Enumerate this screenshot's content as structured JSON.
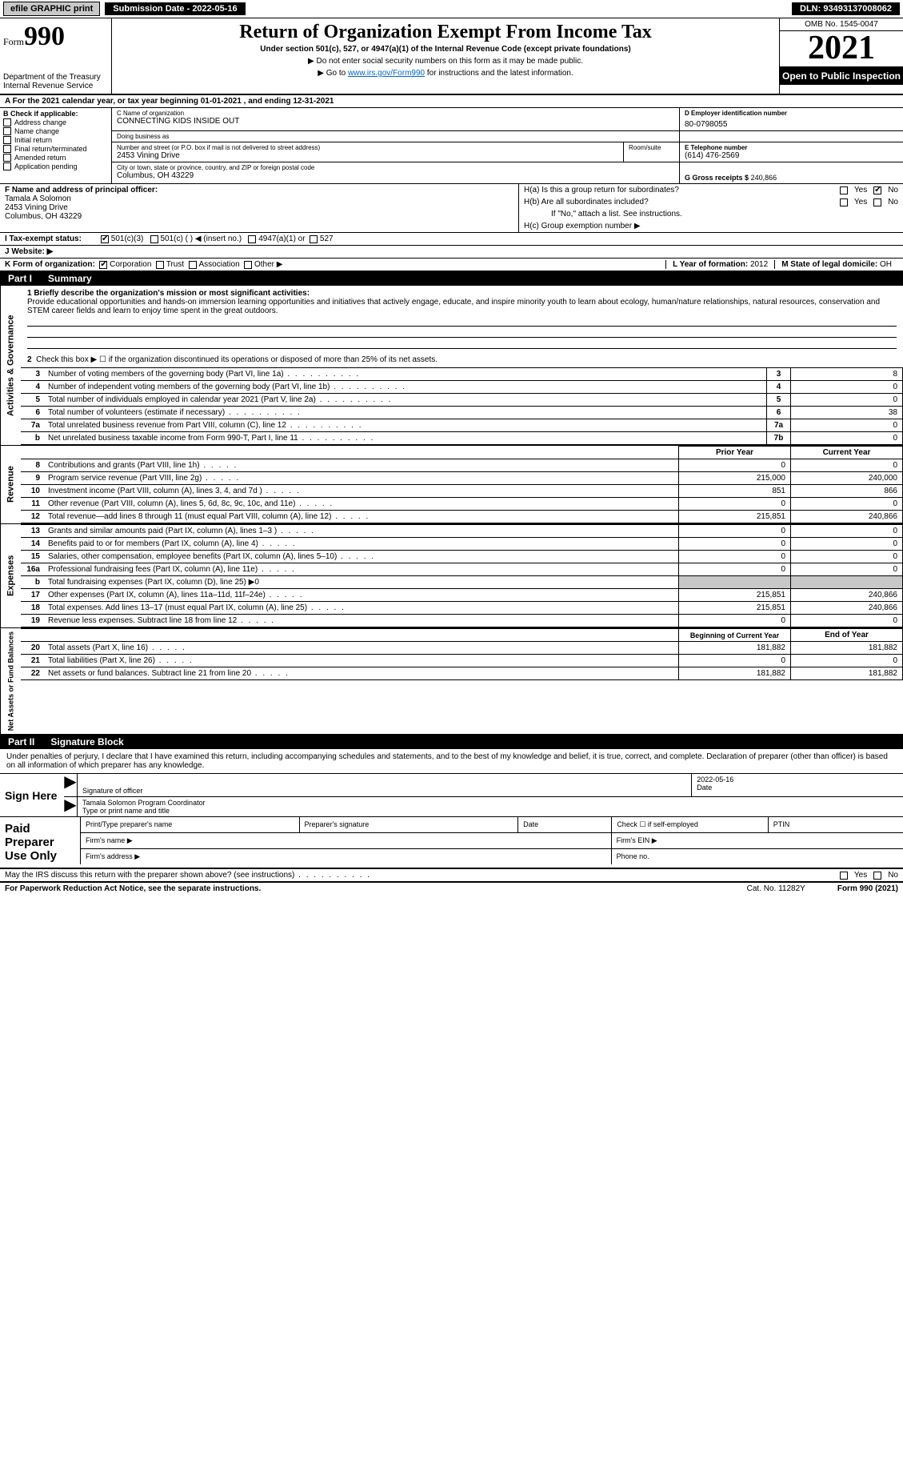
{
  "topbar": {
    "efile": "efile GRAPHIC print",
    "submission": "Submission Date - 2022-05-16",
    "dln": "DLN: 93493137008062"
  },
  "header": {
    "form_prefix": "Form",
    "form_number": "990",
    "dept": "Department of the Treasury",
    "irs": "Internal Revenue Service",
    "title": "Return of Organization Exempt From Income Tax",
    "subtitle": "Under section 501(c), 527, or 4947(a)(1) of the Internal Revenue Code (except private foundations)",
    "ssn_note": "▶ Do not enter social security numbers on this form as it may be made public.",
    "goto_pre": "▶ Go to ",
    "goto_link": "www.irs.gov/Form990",
    "goto_post": " for instructions and the latest information.",
    "omb": "OMB No. 1545-0047",
    "year": "2021",
    "inspection": "Open to Public Inspection"
  },
  "rowA": {
    "text_pre": "A For the 2021 calendar year, or tax year beginning ",
    "begin": "01-01-2021",
    "mid": " , and ending ",
    "end": "12-31-2021"
  },
  "sectionB": {
    "label": "B Check if applicable:",
    "items": [
      "Address change",
      "Name change",
      "Initial return",
      "Final return/terminated",
      "Amended return",
      "Application pending"
    ]
  },
  "sectionC": {
    "name_lbl": "C Name of organization",
    "name": "CONNECTING KIDS INSIDE OUT",
    "dba_lbl": "Doing business as",
    "dba": "",
    "street_lbl": "Number and street (or P.O. box if mail is not delivered to street address)",
    "room_lbl": "Room/suite",
    "street": "2453 Vining Drive",
    "city_lbl": "City or town, state or province, country, and ZIP or foreign postal code",
    "city": "Columbus, OH  43229"
  },
  "sectionD": {
    "ein_lbl": "D Employer identification number",
    "ein": "80-0798055"
  },
  "sectionE": {
    "tel_lbl": "E Telephone number",
    "tel": "(614) 476-2569"
  },
  "sectionG": {
    "lbl": "G Gross receipts $",
    "val": "240,866"
  },
  "sectionF": {
    "lbl": "F  Name and address of principal officer:",
    "name": "Tamala A Solomon",
    "street": "2453 Vining Drive",
    "city": "Columbus, OH  43229"
  },
  "sectionH": {
    "ha": "H(a)  Is this a group return for subordinates?",
    "hb": "H(b)  Are all subordinates included?",
    "hb_note": "If \"No,\" attach a list. See instructions.",
    "hc": "H(c)  Group exemption number ▶",
    "yes": "Yes",
    "no": "No"
  },
  "sectionI": {
    "lbl": "I  Tax-exempt status:",
    "o1": "501(c)(3)",
    "o2": "501(c) (   ) ◀ (insert no.)",
    "o3": "4947(a)(1) or",
    "o4": "527"
  },
  "sectionJ": {
    "lbl": "J  Website: ▶",
    "val": ""
  },
  "sectionK": {
    "lbl": "K Form of organization:",
    "o1": "Corporation",
    "o2": "Trust",
    "o3": "Association",
    "o4": "Other ▶"
  },
  "sectionL": {
    "lbl": "L Year of formation:",
    "val": "2012"
  },
  "sectionM": {
    "lbl": "M State of legal domicile:",
    "val": "OH"
  },
  "part1": {
    "num": "Part I",
    "title": "Summary",
    "line1_lbl": "1 Briefly describe the organization's mission or most significant activities:",
    "line1_val": "Provide educational opportunities and hands-on immersion learning opportunities and initiatives that actively engage, educate, and inspire minority youth to learn about ecology, human/nature relationships, natural resources, conservation and STEM career fields and learn to enjoy time spent in the great outdoors.",
    "line2": "Check this box ▶ ☐  if the organization discontinued its operations or disposed of more than 25% of its net assets.",
    "vtab_ag": "Activities & Governance",
    "vtab_rev": "Revenue",
    "vtab_exp": "Expenses",
    "vtab_na": "Net Assets or Fund Balances",
    "rows_ag": [
      {
        "n": "3",
        "d": "Number of voting members of the governing body (Part VI, line 1a)",
        "c": "3",
        "v": "8"
      },
      {
        "n": "4",
        "d": "Number of independent voting members of the governing body (Part VI, line 1b)",
        "c": "4",
        "v": "0"
      },
      {
        "n": "5",
        "d": "Total number of individuals employed in calendar year 2021 (Part V, line 2a)",
        "c": "5",
        "v": "0"
      },
      {
        "n": "6",
        "d": "Total number of volunteers (estimate if necessary)",
        "c": "6",
        "v": "38"
      },
      {
        "n": "7a",
        "d": "Total unrelated business revenue from Part VIII, column (C), line 12",
        "c": "7a",
        "v": "0"
      },
      {
        "n": "b",
        "d": "Net unrelated business taxable income from Form 990-T, Part I, line 11",
        "c": "7b",
        "v": "0"
      }
    ],
    "hdr_prior": "Prior Year",
    "hdr_curr": "Current Year",
    "rows_rev": [
      {
        "n": "8",
        "d": "Contributions and grants (Part VIII, line 1h)",
        "p": "0",
        "c": "0"
      },
      {
        "n": "9",
        "d": "Program service revenue (Part VIII, line 2g)",
        "p": "215,000",
        "c": "240,000"
      },
      {
        "n": "10",
        "d": "Investment income (Part VIII, column (A), lines 3, 4, and 7d )",
        "p": "851",
        "c": "866"
      },
      {
        "n": "11",
        "d": "Other revenue (Part VIII, column (A), lines 5, 6d, 8c, 9c, 10c, and 11e)",
        "p": "0",
        "c": "0"
      },
      {
        "n": "12",
        "d": "Total revenue—add lines 8 through 11 (must equal Part VIII, column (A), line 12)",
        "p": "215,851",
        "c": "240,866"
      }
    ],
    "rows_exp": [
      {
        "n": "13",
        "d": "Grants and similar amounts paid (Part IX, column (A), lines 1–3 )",
        "p": "0",
        "c": "0"
      },
      {
        "n": "14",
        "d": "Benefits paid to or for members (Part IX, column (A), line 4)",
        "p": "0",
        "c": "0"
      },
      {
        "n": "15",
        "d": "Salaries, other compensation, employee benefits (Part IX, column (A), lines 5–10)",
        "p": "0",
        "c": "0"
      },
      {
        "n": "16a",
        "d": "Professional fundraising fees (Part IX, column (A), line 11e)",
        "p": "0",
        "c": "0"
      }
    ],
    "row_16b": {
      "n": "b",
      "d": "Total fundraising expenses (Part IX, column (D), line 25) ▶0"
    },
    "rows_exp2": [
      {
        "n": "17",
        "d": "Other expenses (Part IX, column (A), lines 11a–11d, 11f–24e)",
        "p": "215,851",
        "c": "240,866"
      },
      {
        "n": "18",
        "d": "Total expenses. Add lines 13–17 (must equal Part IX, column (A), line 25)",
        "p": "215,851",
        "c": "240,866"
      },
      {
        "n": "19",
        "d": "Revenue less expenses. Subtract line 18 from line 12",
        "p": "0",
        "c": "0"
      }
    ],
    "hdr_begin": "Beginning of Current Year",
    "hdr_end": "End of Year",
    "rows_na": [
      {
        "n": "20",
        "d": "Total assets (Part X, line 16)",
        "p": "181,882",
        "c": "181,882"
      },
      {
        "n": "21",
        "d": "Total liabilities (Part X, line 26)",
        "p": "0",
        "c": "0"
      },
      {
        "n": "22",
        "d": "Net assets or fund balances. Subtract line 21 from line 20",
        "p": "181,882",
        "c": "181,882"
      }
    ]
  },
  "part2": {
    "num": "Part II",
    "title": "Signature Block",
    "perjury": "Under penalties of perjury, I declare that I have examined this return, including accompanying schedules and statements, and to the best of my knowledge and belief, it is true, correct, and complete. Declaration of preparer (other than officer) is based on all information of which preparer has any knowledge.",
    "sign_here": "Sign Here",
    "sig_officer": "Signature of officer",
    "date": "Date",
    "sig_date": "2022-05-16",
    "name_title": "Tamala Solomon  Program Coordinator",
    "name_title_lbl": "Type or print name and title",
    "paid": "Paid Preparer Use Only",
    "prep_name": "Print/Type preparer's name",
    "prep_sig": "Preparer's signature",
    "prep_date": "Date",
    "prep_check": "Check ☐ if self-employed",
    "ptin": "PTIN",
    "firm_name": "Firm's name  ▶",
    "firm_ein": "Firm's EIN ▶",
    "firm_addr": "Firm's address ▶",
    "phone": "Phone no.",
    "discuss": "May the IRS discuss this return with the preparer shown above? (see instructions)"
  },
  "footer": {
    "pra": "For Paperwork Reduction Act Notice, see the separate instructions.",
    "cat": "Cat. No. 11282Y",
    "form": "Form 990 (2021)"
  }
}
